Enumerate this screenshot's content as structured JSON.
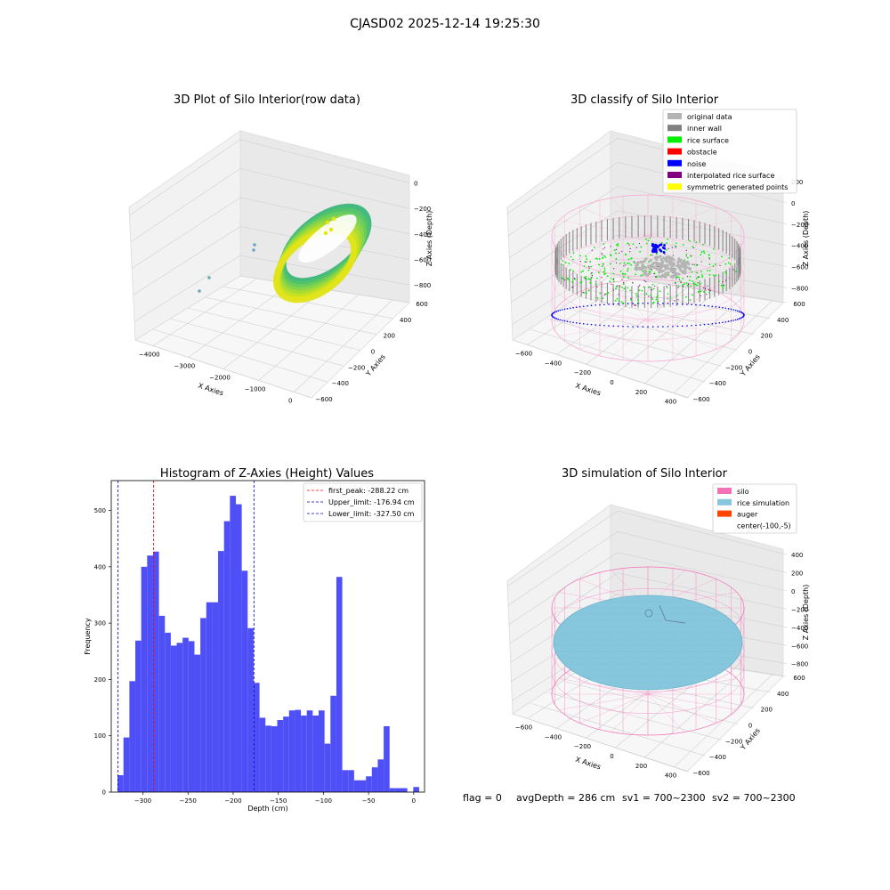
{
  "suptitle": "CJASD02 2025-12-14 19:25:30",
  "footer": {
    "flag": "flag = 0",
    "avg": "avgDepth = 286 cm",
    "sv1": "sv1 = 700~2300",
    "sv2": "sv2 = 700~2300"
  },
  "colors": {
    "histogram_bar": "#4f4ff7",
    "first_peak_line": "#ff0000",
    "limit_line": "#0000cc",
    "silo_wire": "#f471b5",
    "rice_sim": "#87c7de",
    "auger": "#ff4500",
    "inner_wall": "#808080",
    "original": "#b4b4b4",
    "rice_surface": "#00ee00",
    "noise": "#0000ff",
    "interpolated": "#800080",
    "symmetric": "#ffff00"
  },
  "chart_data": [
    {
      "type": "scatter3d",
      "title": "3D Plot of Silo Interior(row data)",
      "xlabel": "X Axies",
      "ylabel": "Y Axies",
      "zlabel": "Z Axies (Depth)",
      "x_ticks": [
        "−4000",
        "−3000",
        "−2000",
        "−1000",
        "0"
      ],
      "y_ticks": [
        "−600",
        "−400",
        "−200",
        "0",
        "200",
        "400",
        "600"
      ],
      "z_ticks": [
        "0",
        "−200",
        "−400",
        "−600",
        "−800"
      ],
      "colormap": "viridis"
    },
    {
      "type": "scatter3d",
      "title": "3D classify of Silo Interior",
      "xlabel": "X Axies",
      "ylabel": "Y Axies",
      "zlabel": "Z Axies (Depth)",
      "x_ticks": [
        "−600",
        "−400",
        "−200",
        "0",
        "200",
        "400"
      ],
      "y_ticks": [
        "−600",
        "−400",
        "−200",
        "0",
        "200",
        "400",
        "600"
      ],
      "z_ticks": [
        "200",
        "0",
        "−200",
        "−400",
        "−600",
        "−800"
      ],
      "legend_position": "top-right",
      "legend": [
        {
          "label": "original data",
          "color": "#b4b4b4"
        },
        {
          "label": "inner wall",
          "color": "#808080"
        },
        {
          "label": "rice surface",
          "color": "#00ee00"
        },
        {
          "label": "obstacle",
          "color": "#ff0000"
        },
        {
          "label": "noise",
          "color": "#0000ff"
        },
        {
          "label": "interpolated rice surface",
          "color": "#800080"
        },
        {
          "label": "symmetric generated points",
          "color": "#ffff00"
        }
      ]
    },
    {
      "type": "bar",
      "title": "Histogram of Z-Axies (Height) Values",
      "xlabel": "Depth (cm)",
      "ylabel": "Frequency",
      "xlim": [
        -335,
        12
      ],
      "ylim": [
        0,
        553
      ],
      "x_ticks": [
        -300,
        -250,
        -200,
        -150,
        -100,
        -50,
        0
      ],
      "x_tick_labels": [
        "−300",
        "−250",
        "−200",
        "−150",
        "−100",
        "−50",
        "0"
      ],
      "y_ticks": [
        0,
        100,
        200,
        300,
        400,
        500
      ],
      "y_tick_labels": [
        "0",
        "100",
        "200",
        "300",
        "400",
        "500"
      ],
      "bin_start": -328,
      "bin_width": 6.55,
      "values": [
        30,
        97,
        197,
        269,
        400,
        420,
        427,
        313,
        283,
        260,
        265,
        274,
        268,
        244,
        309,
        337,
        337,
        428,
        481,
        526,
        511,
        393,
        291,
        194,
        132,
        118,
        117,
        128,
        134,
        145,
        146,
        136,
        145,
        136,
        145,
        86,
        171,
        382,
        39,
        39,
        21,
        21,
        28,
        44,
        58,
        117,
        7,
        7,
        7,
        0,
        9
      ],
      "vlines": [
        {
          "label": "first_peak: -288.22 cm",
          "x": -288.22,
          "color": "#ff0000"
        },
        {
          "label": "Upper_limit: -176.94 cm",
          "x": -176.94,
          "color": "#0000cc"
        },
        {
          "label": "Lower_limit: -327.50 cm",
          "x": -327.5,
          "color": "#0000cc"
        }
      ],
      "legend_position": "top-right"
    },
    {
      "type": "surface3d",
      "title": "3D simulation of Silo Interior",
      "xlabel": "X Axies",
      "ylabel": "Y Axies",
      "zlabel": "Z Axies (Depth)",
      "x_ticks": [
        "−600",
        "−400",
        "−200",
        "0",
        "200",
        "400"
      ],
      "y_ticks": [
        "−600",
        "−400",
        "−200",
        "0",
        "200",
        "400",
        "600"
      ],
      "z_ticks": [
        "400",
        "200",
        "0",
        "−200",
        "−400",
        "−600",
        "−800"
      ],
      "legend_position": "top-right",
      "legend": [
        {
          "label": "silo",
          "color": "#f471b5"
        },
        {
          "label": "rice simulation",
          "color": "#87c7de"
        },
        {
          "label": "auger",
          "color": "#ff4500"
        },
        {
          "label": "center(-100,-5)",
          "color": ""
        }
      ]
    }
  ]
}
